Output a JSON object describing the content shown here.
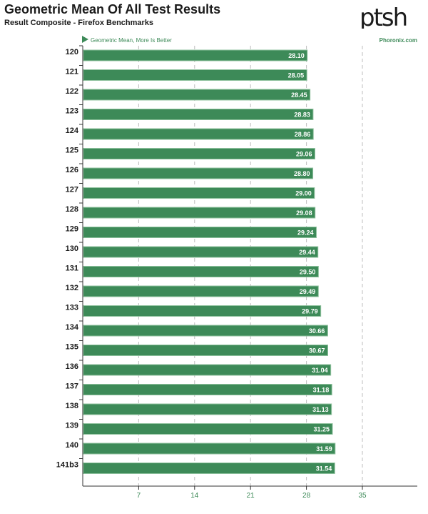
{
  "header": {
    "title": "Geometric Mean Of All Test Results",
    "subtitle": "Result Composite - Firefox Benchmarks",
    "logo_text": "ptsh"
  },
  "chart_data": {
    "type": "bar",
    "orientation": "horizontal",
    "legend": "Geometric Mean, More Is Better",
    "source": "Phoronix.com",
    "categories": [
      "120",
      "121",
      "122",
      "123",
      "124",
      "125",
      "126",
      "127",
      "128",
      "129",
      "130",
      "131",
      "132",
      "133",
      "134",
      "135",
      "136",
      "137",
      "138",
      "139",
      "140",
      "141b3"
    ],
    "values": [
      28.1,
      28.05,
      28.45,
      28.83,
      28.86,
      29.06,
      28.8,
      29.0,
      29.08,
      29.24,
      29.44,
      29.5,
      29.49,
      29.79,
      30.66,
      30.67,
      31.04,
      31.18,
      31.13,
      31.25,
      31.59,
      31.54
    ],
    "value_labels": [
      "28.10",
      "28.05",
      "28.45",
      "28.83",
      "28.86",
      "29.06",
      "28.80",
      "29.00",
      "29.08",
      "29.24",
      "29.44",
      "29.50",
      "29.49",
      "29.79",
      "30.66",
      "30.67",
      "31.04",
      "31.18",
      "31.13",
      "31.25",
      "31.59",
      "31.54"
    ],
    "xticks": [
      7,
      14,
      21,
      28,
      35
    ],
    "xtick_labels": [
      "7",
      "14",
      "21",
      "28",
      "35"
    ],
    "xlim": [
      0,
      42
    ],
    "grid": true,
    "colors": {
      "bar_fill": "#3d8a58",
      "bar_edge": "#8fc29e",
      "axis_text": "#3d8a58",
      "category_text": "#1b1b1b",
      "grid": "#bdbdbd"
    }
  }
}
